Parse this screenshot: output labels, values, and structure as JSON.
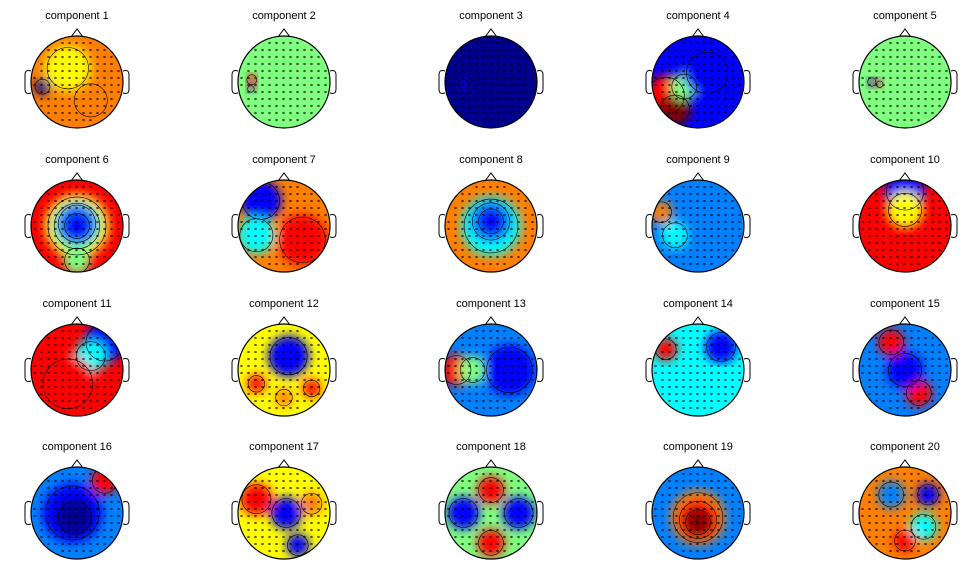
{
  "figure": {
    "titles": [
      "component 1",
      "component 2",
      "component 3",
      "component 4",
      "component 5",
      "component 6",
      "component 7",
      "component 8",
      "component 9",
      "component 10",
      "component 11",
      "component 12",
      "component 13",
      "component 14",
      "component 15",
      "component 16",
      "component 17",
      "component 18",
      "component 19",
      "component 20"
    ],
    "colormap": [
      "#00008f",
      "#0000ff",
      "#0080ff",
      "#00ffff",
      "#80ff80",
      "#ffff00",
      "#ff8000",
      "#ff0000",
      "#800000"
    ]
  }
}
